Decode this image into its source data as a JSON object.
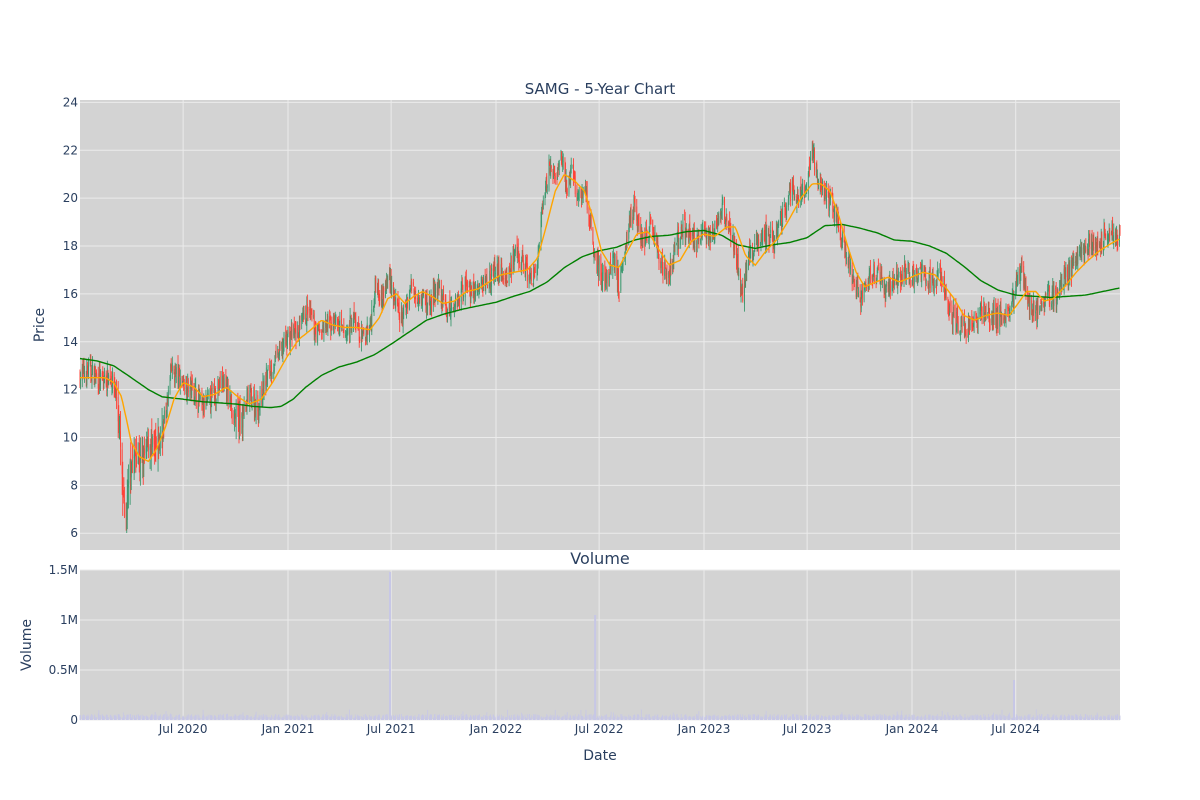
{
  "chart_data": {
    "type": "candlestick",
    "title": "SAMG - 5-Year Chart",
    "colors": {
      "plot_bg": "#d3d3d3",
      "grid": "#ebebeb",
      "up": "#3d9970",
      "down": "#ff4136",
      "ma_short": "#ffa500",
      "ma_long": "#008000",
      "volume_bar": "#c7c7e6",
      "text": "#2a3f5f"
    },
    "price_panel": {
      "ylabel": "Price",
      "ylim": [
        5.3,
        24.1
      ],
      "yticks": [
        6,
        8,
        10,
        12,
        14,
        16,
        18,
        20,
        22,
        24
      ],
      "grid": true
    },
    "volume_panel": {
      "title": "Volume",
      "ylabel": "Volume",
      "ylim": [
        0,
        1500000
      ],
      "yticks": [
        0,
        500000,
        1000000,
        1500000
      ],
      "ytick_labels": [
        "0",
        "0.5M",
        "1M",
        "1.5M"
      ],
      "grid": true
    },
    "x_axis": {
      "xlabel": "Date",
      "range": [
        "2020-01-02",
        "2024-12-31"
      ],
      "ticks": [
        "2020-07-01",
        "2021-01-01",
        "2021-07-01",
        "2022-01-01",
        "2022-07-01",
        "2023-01-01",
        "2023-07-01",
        "2024-01-01",
        "2024-07-01"
      ],
      "tick_labels": [
        "Jul 2020",
        "Jan 2021",
        "Jul 2021",
        "Jan 2022",
        "Jul 2022",
        "Jan 2023",
        "Jul 2023",
        "Jan 2024",
        "Jul 2024"
      ]
    },
    "close_path": [
      [
        "2020-01-02",
        12.6
      ],
      [
        "2020-01-20",
        12.8
      ],
      [
        "2020-02-10",
        12.3
      ],
      [
        "2020-02-24",
        12.6
      ],
      [
        "2020-03-05",
        11.9
      ],
      [
        "2020-03-12",
        10.0
      ],
      [
        "2020-03-18",
        7.2
      ],
      [
        "2020-03-23",
        6.6
      ],
      [
        "2020-03-30",
        8.8
      ],
      [
        "2020-04-08",
        9.3
      ],
      [
        "2020-04-20",
        8.9
      ],
      [
        "2020-05-01",
        9.8
      ],
      [
        "2020-05-15",
        9.4
      ],
      [
        "2020-06-01",
        11.0
      ],
      [
        "2020-06-10",
        12.8
      ],
      [
        "2020-06-20",
        12.6
      ],
      [
        "2020-07-01",
        12.3
      ],
      [
        "2020-07-20",
        12.0
      ],
      [
        "2020-08-05",
        11.2
      ],
      [
        "2020-08-20",
        11.7
      ],
      [
        "2020-09-10",
        12.4
      ],
      [
        "2020-09-25",
        11.2
      ],
      [
        "2020-10-10",
        10.6
      ],
      [
        "2020-10-25",
        11.8
      ],
      [
        "2020-11-10",
        11.2
      ],
      [
        "2020-11-25",
        12.6
      ],
      [
        "2020-12-10",
        13.2
      ],
      [
        "2020-12-31",
        14.2
      ],
      [
        "2021-01-20",
        14.4
      ],
      [
        "2021-02-05",
        15.3
      ],
      [
        "2021-02-20",
        14.4
      ],
      [
        "2021-03-10",
        14.6
      ],
      [
        "2021-03-25",
        14.9
      ],
      [
        "2021-04-10",
        14.2
      ],
      [
        "2021-04-25",
        15.0
      ],
      [
        "2021-05-10",
        14.1
      ],
      [
        "2021-05-25",
        14.6
      ],
      [
        "2021-06-05",
        16.6
      ],
      [
        "2021-06-15",
        15.8
      ],
      [
        "2021-06-28",
        16.8
      ],
      [
        "2021-07-10",
        15.4
      ],
      [
        "2021-07-20",
        14.9
      ],
      [
        "2021-08-05",
        16.3
      ],
      [
        "2021-08-20",
        16.0
      ],
      [
        "2021-09-05",
        15.5
      ],
      [
        "2021-09-20",
        16.2
      ],
      [
        "2021-10-10",
        15.2
      ],
      [
        "2021-10-25",
        15.8
      ],
      [
        "2021-11-10",
        16.5
      ],
      [
        "2021-11-25",
        16.0
      ],
      [
        "2021-12-15",
        16.6
      ],
      [
        "2022-01-05",
        17.0
      ],
      [
        "2022-01-20",
        16.7
      ],
      [
        "2022-02-05",
        17.6
      ],
      [
        "2022-02-20",
        17.2
      ],
      [
        "2022-03-05",
        16.4
      ],
      [
        "2022-03-15",
        17.4
      ],
      [
        "2022-03-25",
        19.6
      ],
      [
        "2022-04-05",
        21.5
      ],
      [
        "2022-04-15",
        20.5
      ],
      [
        "2022-04-25",
        21.9
      ],
      [
        "2022-05-05",
        20.3
      ],
      [
        "2022-05-15",
        21.4
      ],
      [
        "2022-05-25",
        19.8
      ],
      [
        "2022-06-05",
        20.6
      ],
      [
        "2022-06-15",
        19.0
      ],
      [
        "2022-06-25",
        17.5
      ],
      [
        "2022-07-05",
        16.8
      ],
      [
        "2022-07-15",
        16.5
      ],
      [
        "2022-07-25",
        17.6
      ],
      [
        "2022-08-05",
        16.4
      ],
      [
        "2022-08-20",
        18.8
      ],
      [
        "2022-09-01",
        19.7
      ],
      [
        "2022-09-15",
        18.2
      ],
      [
        "2022-10-01",
        18.8
      ],
      [
        "2022-10-15",
        17.3
      ],
      [
        "2022-11-01",
        16.8
      ],
      [
        "2022-11-15",
        18.2
      ],
      [
        "2022-12-01",
        18.8
      ],
      [
        "2022-12-15",
        18.1
      ],
      [
        "2023-01-01",
        18.6
      ],
      [
        "2023-01-15",
        18.3
      ],
      [
        "2023-02-01",
        19.6
      ],
      [
        "2023-02-15",
        18.8
      ],
      [
        "2023-03-01",
        17.2
      ],
      [
        "2023-03-10",
        16.1
      ],
      [
        "2023-03-20",
        17.6
      ],
      [
        "2023-04-05",
        18.1
      ],
      [
        "2023-04-20",
        18.6
      ],
      [
        "2023-05-05",
        18.2
      ],
      [
        "2023-05-20",
        19.3
      ],
      [
        "2023-06-05",
        20.4
      ],
      [
        "2023-06-20",
        20.0
      ],
      [
        "2023-07-01",
        20.6
      ],
      [
        "2023-07-10",
        22.0
      ],
      [
        "2023-07-20",
        20.7
      ],
      [
        "2023-08-05",
        20.1
      ],
      [
        "2023-08-20",
        19.4
      ],
      [
        "2023-09-05",
        18.0
      ],
      [
        "2023-09-20",
        16.6
      ],
      [
        "2023-10-01",
        15.8
      ],
      [
        "2023-10-15",
        16.6
      ],
      [
        "2023-11-01",
        17.0
      ],
      [
        "2023-11-15",
        16.2
      ],
      [
        "2023-12-01",
        16.6
      ],
      [
        "2023-12-20",
        17.0
      ],
      [
        "2024-01-05",
        16.7
      ],
      [
        "2024-01-20",
        17.0
      ],
      [
        "2024-02-05",
        16.4
      ],
      [
        "2024-02-20",
        16.9
      ],
      [
        "2024-03-05",
        15.4
      ],
      [
        "2024-03-20",
        14.8
      ],
      [
        "2024-04-05",
        14.5
      ],
      [
        "2024-04-20",
        15.0
      ],
      [
        "2024-05-05",
        15.4
      ],
      [
        "2024-05-20",
        15.1
      ],
      [
        "2024-06-05",
        15.0
      ],
      [
        "2024-06-20",
        15.2
      ],
      [
        "2024-07-01",
        16.2
      ],
      [
        "2024-07-10",
        17.2
      ],
      [
        "2024-07-25",
        15.6
      ],
      [
        "2024-08-10",
        15.2
      ],
      [
        "2024-08-25",
        16.0
      ],
      [
        "2024-09-10",
        15.9
      ],
      [
        "2024-09-25",
        16.8
      ],
      [
        "2024-10-10",
        17.1
      ],
      [
        "2024-10-25",
        17.6
      ],
      [
        "2024-11-10",
        18.2
      ],
      [
        "2024-11-25",
        18.0
      ],
      [
        "2024-12-10",
        18.6
      ],
      [
        "2024-12-31",
        18.4
      ]
    ],
    "ma_short_path": [
      [
        "2020-01-02",
        12.5
      ],
      [
        "2020-02-15",
        12.5
      ],
      [
        "2020-03-01",
        12.3
      ],
      [
        "2020-03-15",
        11.7
      ],
      [
        "2020-04-01",
        9.8
      ],
      [
        "2020-04-15",
        9.2
      ],
      [
        "2020-05-01",
        9.0
      ],
      [
        "2020-05-15",
        9.5
      ],
      [
        "2020-06-01",
        10.5
      ],
      [
        "2020-06-15",
        11.6
      ],
      [
        "2020-07-01",
        12.3
      ],
      [
        "2020-07-20",
        12.1
      ],
      [
        "2020-08-05",
        11.7
      ],
      [
        "2020-08-25",
        11.8
      ],
      [
        "2020-09-15",
        12.1
      ],
      [
        "2020-10-05",
        11.7
      ],
      [
        "2020-10-25",
        11.4
      ],
      [
        "2020-11-15",
        11.6
      ],
      [
        "2020-12-05",
        12.3
      ],
      [
        "2020-12-31",
        13.4
      ],
      [
        "2021-01-20",
        14.1
      ],
      [
        "2021-02-10",
        14.5
      ],
      [
        "2021-03-01",
        14.9
      ],
      [
        "2021-03-20",
        14.7
      ],
      [
        "2021-04-10",
        14.6
      ],
      [
        "2021-05-01",
        14.6
      ],
      [
        "2021-05-25",
        14.5
      ],
      [
        "2021-06-10",
        15.0
      ],
      [
        "2021-06-25",
        15.8
      ],
      [
        "2021-07-10",
        16.0
      ],
      [
        "2021-07-25",
        15.6
      ],
      [
        "2021-08-10",
        15.9
      ],
      [
        "2021-08-25",
        16.1
      ],
      [
        "2021-09-10",
        15.9
      ],
      [
        "2021-09-30",
        15.6
      ],
      [
        "2021-10-20",
        15.7
      ],
      [
        "2021-11-10",
        16.1
      ],
      [
        "2021-11-30",
        16.2
      ],
      [
        "2021-12-20",
        16.5
      ],
      [
        "2022-01-10",
        16.8
      ],
      [
        "2022-02-01",
        16.9
      ],
      [
        "2022-02-25",
        17.0
      ],
      [
        "2022-03-15",
        17.5
      ],
      [
        "2022-03-30",
        18.8
      ],
      [
        "2022-04-15",
        20.3
      ],
      [
        "2022-05-01",
        21.0
      ],
      [
        "2022-05-20",
        20.7
      ],
      [
        "2022-06-05",
        20.3
      ],
      [
        "2022-06-20",
        19.2
      ],
      [
        "2022-07-05",
        17.8
      ],
      [
        "2022-07-20",
        17.2
      ],
      [
        "2022-08-05",
        17.1
      ],
      [
        "2022-08-20",
        17.8
      ],
      [
        "2022-09-05",
        18.5
      ],
      [
        "2022-09-25",
        18.6
      ],
      [
        "2022-10-15",
        17.8
      ],
      [
        "2022-11-01",
        17.2
      ],
      [
        "2022-11-20",
        17.4
      ],
      [
        "2022-12-10",
        18.2
      ],
      [
        "2022-12-31",
        18.5
      ],
      [
        "2023-01-20",
        18.4
      ],
      [
        "2023-02-10",
        18.8
      ],
      [
        "2023-02-25",
        18.8
      ],
      [
        "2023-03-15",
        17.6
      ],
      [
        "2023-04-01",
        17.2
      ],
      [
        "2023-04-20",
        17.8
      ],
      [
        "2023-05-10",
        18.3
      ],
      [
        "2023-05-30",
        19.1
      ],
      [
        "2023-06-20",
        20.0
      ],
      [
        "2023-07-10",
        20.6
      ],
      [
        "2023-07-25",
        20.6
      ],
      [
        "2023-08-10",
        20.3
      ],
      [
        "2023-08-25",
        19.3
      ],
      [
        "2023-09-10",
        18.0
      ],
      [
        "2023-09-25",
        16.9
      ],
      [
        "2023-10-10",
        16.3
      ],
      [
        "2023-10-30",
        16.5
      ],
      [
        "2023-11-20",
        16.7
      ],
      [
        "2023-12-10",
        16.5
      ],
      [
        "2023-12-31",
        16.7
      ],
      [
        "2024-01-20",
        16.9
      ],
      [
        "2024-02-10",
        16.8
      ],
      [
        "2024-02-28",
        16.3
      ],
      [
        "2024-03-15",
        15.8
      ],
      [
        "2024-04-01",
        15.1
      ],
      [
        "2024-04-20",
        14.9
      ],
      [
        "2024-05-10",
        15.1
      ],
      [
        "2024-05-30",
        15.2
      ],
      [
        "2024-06-20",
        15.1
      ],
      [
        "2024-07-05",
        15.6
      ],
      [
        "2024-07-20",
        16.1
      ],
      [
        "2024-08-05",
        16.1
      ],
      [
        "2024-08-20",
        15.7
      ],
      [
        "2024-09-05",
        15.8
      ],
      [
        "2024-09-25",
        16.3
      ],
      [
        "2024-10-15",
        16.9
      ],
      [
        "2024-11-05",
        17.4
      ],
      [
        "2024-11-25",
        17.8
      ],
      [
        "2024-12-15",
        18.1
      ],
      [
        "2024-12-31",
        18.3
      ]
    ],
    "ma_long_path": [
      [
        "2020-01-02",
        13.3
      ],
      [
        "2020-02-01",
        13.2
      ],
      [
        "2020-03-01",
        13.0
      ],
      [
        "2020-04-01",
        12.5
      ],
      [
        "2020-05-01",
        12.0
      ],
      [
        "2020-05-25",
        11.7
      ],
      [
        "2020-07-01",
        11.6
      ],
      [
        "2020-08-01",
        11.5
      ],
      [
        "2020-09-01",
        11.45
      ],
      [
        "2020-10-01",
        11.4
      ],
      [
        "2020-11-01",
        11.3
      ],
      [
        "2020-12-01",
        11.25
      ],
      [
        "2020-12-20",
        11.3
      ],
      [
        "2021-01-10",
        11.6
      ],
      [
        "2021-02-01",
        12.1
      ],
      [
        "2021-03-01",
        12.6
      ],
      [
        "2021-04-01",
        12.95
      ],
      [
        "2021-05-01",
        13.15
      ],
      [
        "2021-06-01",
        13.45
      ],
      [
        "2021-07-01",
        13.9
      ],
      [
        "2021-08-01",
        14.4
      ],
      [
        "2021-09-01",
        14.9
      ],
      [
        "2021-10-01",
        15.15
      ],
      [
        "2021-11-01",
        15.35
      ],
      [
        "2021-12-01",
        15.5
      ],
      [
        "2022-01-01",
        15.65
      ],
      [
        "2022-02-01",
        15.9
      ],
      [
        "2022-03-01",
        16.1
      ],
      [
        "2022-04-01",
        16.5
      ],
      [
        "2022-05-01",
        17.1
      ],
      [
        "2022-06-01",
        17.55
      ],
      [
        "2022-07-01",
        17.8
      ],
      [
        "2022-08-01",
        17.95
      ],
      [
        "2022-09-01",
        18.25
      ],
      [
        "2022-10-01",
        18.4
      ],
      [
        "2022-11-01",
        18.45
      ],
      [
        "2022-12-01",
        18.6
      ],
      [
        "2023-01-01",
        18.65
      ],
      [
        "2023-02-01",
        18.45
      ],
      [
        "2023-03-01",
        18.05
      ],
      [
        "2023-04-01",
        17.9
      ],
      [
        "2023-05-01",
        18.05
      ],
      [
        "2023-06-01",
        18.15
      ],
      [
        "2023-07-01",
        18.35
      ],
      [
        "2023-08-01",
        18.85
      ],
      [
        "2023-09-01",
        18.9
      ],
      [
        "2023-10-01",
        18.75
      ],
      [
        "2023-11-01",
        18.55
      ],
      [
        "2023-12-01",
        18.25
      ],
      [
        "2024-01-01",
        18.2
      ],
      [
        "2024-02-01",
        18.0
      ],
      [
        "2024-03-01",
        17.7
      ],
      [
        "2024-04-01",
        17.15
      ],
      [
        "2024-05-01",
        16.55
      ],
      [
        "2024-06-01",
        16.15
      ],
      [
        "2024-07-01",
        15.95
      ],
      [
        "2024-08-01",
        15.9
      ],
      [
        "2024-09-01",
        15.85
      ],
      [
        "2024-10-01",
        15.9
      ],
      [
        "2024-11-01",
        15.95
      ],
      [
        "2024-12-01",
        16.1
      ],
      [
        "2024-12-31",
        16.25
      ]
    ],
    "volume_spikes": [
      [
        "2021-06-29",
        1480000
      ],
      [
        "2022-06-24",
        1050000
      ],
      [
        "2024-06-28",
        400000
      ]
    ],
    "volume_baseline": [
      20000,
      60000
    ]
  }
}
